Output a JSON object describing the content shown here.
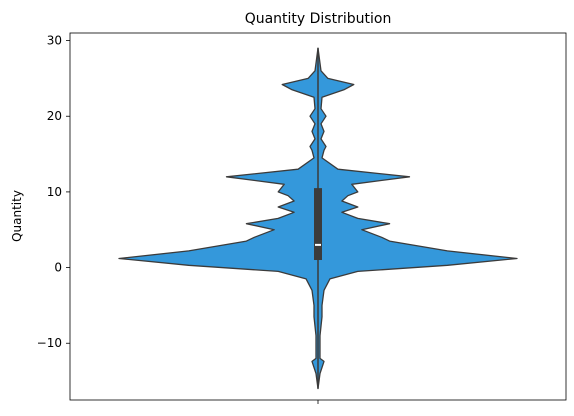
{
  "chart_data": {
    "type": "violin",
    "title": "Quantity Distribution",
    "xlabel": "",
    "ylabel": "Quantity",
    "ylim": [
      -17.5,
      31
    ],
    "yticks": [
      {
        "value": 30,
        "label": "30"
      },
      {
        "value": 20,
        "label": "20"
      },
      {
        "value": 10,
        "label": "10"
      },
      {
        "value": 0,
        "label": "0"
      },
      {
        "value": -10,
        "label": "−10"
      }
    ],
    "grid": false,
    "legend": "none",
    "fill_color": "#3498db",
    "line_color": "#3b3b3b",
    "violin_range": [
      -16,
      29
    ],
    "density_profile": [
      {
        "y": -16,
        "w": 0.0
      },
      {
        "y": -14,
        "w": 0.01
      },
      {
        "y": -12.4,
        "w": 0.03
      },
      {
        "y": -12,
        "w": 0.01
      },
      {
        "y": -9,
        "w": 0.01
      },
      {
        "y": -6.5,
        "w": 0.02
      },
      {
        "y": -5,
        "w": 0.02
      },
      {
        "y": -3,
        "w": 0.03
      },
      {
        "y": -1.5,
        "w": 0.06
      },
      {
        "y": -0.5,
        "w": 0.2
      },
      {
        "y": 0.3,
        "w": 0.65
      },
      {
        "y": 1.2,
        "w": 1.0
      },
      {
        "y": 2.2,
        "w": 0.65
      },
      {
        "y": 3.5,
        "w": 0.36
      },
      {
        "y": 4,
        "w": 0.32
      },
      {
        "y": 5,
        "w": 0.22
      },
      {
        "y": 5.8,
        "w": 0.36
      },
      {
        "y": 6.5,
        "w": 0.2
      },
      {
        "y": 7.3,
        "w": 0.12
      },
      {
        "y": 8,
        "w": 0.2
      },
      {
        "y": 8.8,
        "w": 0.12
      },
      {
        "y": 9.5,
        "w": 0.15
      },
      {
        "y": 10,
        "w": 0.2
      },
      {
        "y": 11,
        "w": 0.17
      },
      {
        "y": 12,
        "w": 0.46
      },
      {
        "y": 13,
        "w": 0.1
      },
      {
        "y": 14.5,
        "w": 0.02
      },
      {
        "y": 15.5,
        "w": 0.03
      },
      {
        "y": 16,
        "w": 0.04
      },
      {
        "y": 17,
        "w": 0.015
      },
      {
        "y": 18,
        "w": 0.03
      },
      {
        "y": 19,
        "w": 0.015
      },
      {
        "y": 20,
        "w": 0.04
      },
      {
        "y": 21,
        "w": 0.015
      },
      {
        "y": 22.5,
        "w": 0.02
      },
      {
        "y": 23.5,
        "w": 0.13
      },
      {
        "y": 24.2,
        "w": 0.18
      },
      {
        "y": 25,
        "w": 0.05
      },
      {
        "y": 26,
        "w": 0.015
      },
      {
        "y": 29,
        "w": 0.0
      }
    ],
    "box": {
      "q1": 1,
      "median": 3,
      "q3": 10.5,
      "whisker_low": -16,
      "whisker_high": 29
    }
  }
}
